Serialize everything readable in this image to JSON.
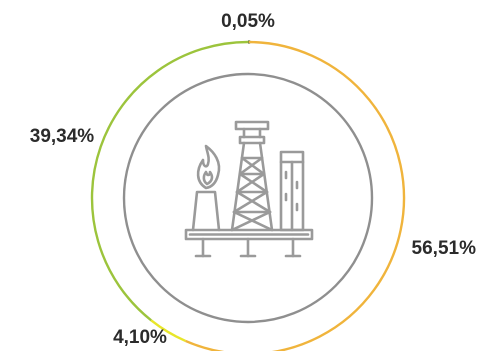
{
  "chart_data": {
    "type": "pie",
    "style": "donut-ring",
    "title": "",
    "slices": [
      {
        "label": "0,05%",
        "value": 0.05,
        "color": "#2e6b3a"
      },
      {
        "label": "56,51%",
        "value": 56.51,
        "color": "#f0b43c"
      },
      {
        "label": "4,10%",
        "value": 4.1,
        "color": "#e8e62a"
      },
      {
        "label": "39,34%",
        "value": 39.34,
        "color": "#9cc43c"
      }
    ],
    "legend": "none"
  },
  "center_icon": {
    "name": "oil-rig-icon",
    "color": "#9a9a9a"
  },
  "inner_circle_color": "#8f8f8f"
}
